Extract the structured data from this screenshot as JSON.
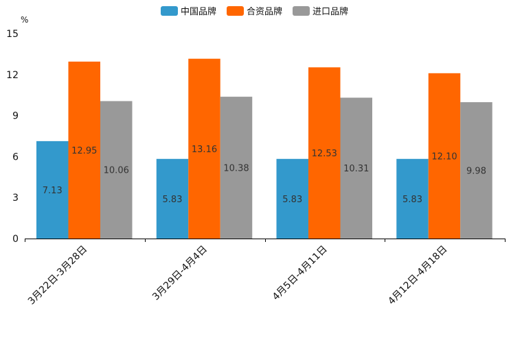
{
  "chart_data": {
    "type": "bar",
    "title": "",
    "xlabel": "",
    "ylabel": "",
    "unit": "%",
    "ylim": [
      0,
      15
    ],
    "yticks": [
      "0",
      "3",
      "6",
      "9",
      "12",
      "15"
    ],
    "grid": false,
    "legend_position": "top-center",
    "categories": [
      "3月22日-3月28日",
      "3月29日-4月4日",
      "4月5日-4月11日",
      "4月12日-4月18日"
    ],
    "series": [
      {
        "name": "中国品牌",
        "color": "#3399cc",
        "values": [
          7.13,
          5.83,
          5.83,
          5.83
        ],
        "labels": [
          "7.13",
          "5.83",
          "5.83",
          "5.83"
        ]
      },
      {
        "name": "合资品牌",
        "color": "#ff6600",
        "values": [
          12.95,
          13.16,
          12.53,
          12.1
        ],
        "labels": [
          "12.95",
          "13.16",
          "12.53",
          "12.10"
        ]
      },
      {
        "name": "进口品牌",
        "color": "#999999",
        "values": [
          10.06,
          10.38,
          10.31,
          9.98
        ],
        "labels": [
          "10.06",
          "10.38",
          "10.31",
          "9.98"
        ]
      }
    ]
  }
}
